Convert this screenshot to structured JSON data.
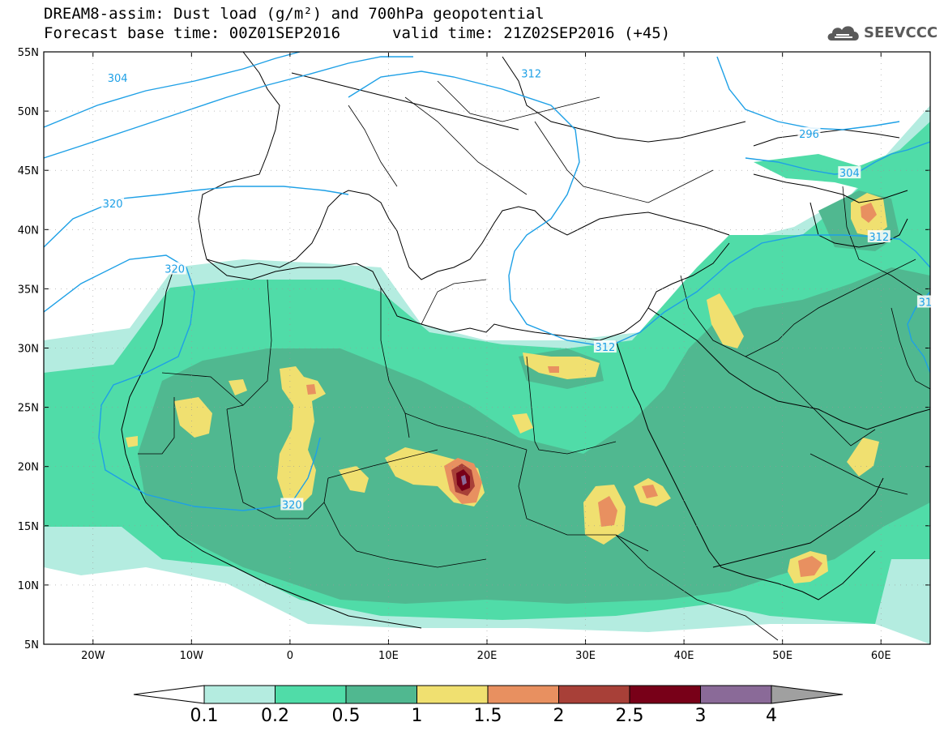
{
  "header": {
    "title": "DREAM8-assim: Dust load (g/m²) and 700hPa geopotential",
    "base_time": "Forecast base time: 00Z01SEP2016",
    "valid_time": "valid time: 21Z02SEP2016 (+45)",
    "logo": "SEEVCCC",
    "logo_icon": "cloud-icon"
  },
  "map": {
    "lat_labels": [
      "55N",
      "50N",
      "45N",
      "40N",
      "35N",
      "30N",
      "25N",
      "20N",
      "15N",
      "10N",
      "5N"
    ],
    "lon_labels": [
      "20W",
      "10W",
      "0",
      "10E",
      "20E",
      "30E",
      "40E",
      "50E",
      "60E"
    ],
    "lon_range": [
      -25,
      65
    ],
    "lat_range": [
      5,
      55
    ],
    "contour_labels": [
      {
        "text": "304",
        "lon": -17.5,
        "lat": 52.8
      },
      {
        "text": "312",
        "lon": 24.5,
        "lat": 53.2
      },
      {
        "text": "296",
        "lon": 52.7,
        "lat": 48.1
      },
      {
        "text": "304",
        "lon": 56.8,
        "lat": 44.8
      },
      {
        "text": "320",
        "lon": -18.0,
        "lat": 42.2
      },
      {
        "text": "320",
        "lon": -11.7,
        "lat": 36.7
      },
      {
        "text": "312",
        "lon": 59.8,
        "lat": 39.4
      },
      {
        "text": "31",
        "lon": 64.5,
        "lat": 33.9
      },
      {
        "text": "312",
        "lon": 32.0,
        "lat": 30.1
      },
      {
        "text": "320",
        "lon": 0.2,
        "lat": 16.8
      }
    ],
    "colors": {
      "ocean_land": "#ffffff",
      "geopotential": "#1ea0e6",
      "coast": "#000000"
    }
  },
  "colorbar": {
    "levels": [
      "0.1",
      "0.2",
      "0.5",
      "1",
      "1.5",
      "2",
      "2.5",
      "3",
      "4"
    ],
    "colors": [
      "#ffffff",
      "#b4ece0",
      "#50dca8",
      "#50b890",
      "#f0e070",
      "#e89060",
      "#a84038",
      "#780018",
      "#8a6a98",
      "#a0a0a0"
    ]
  }
}
